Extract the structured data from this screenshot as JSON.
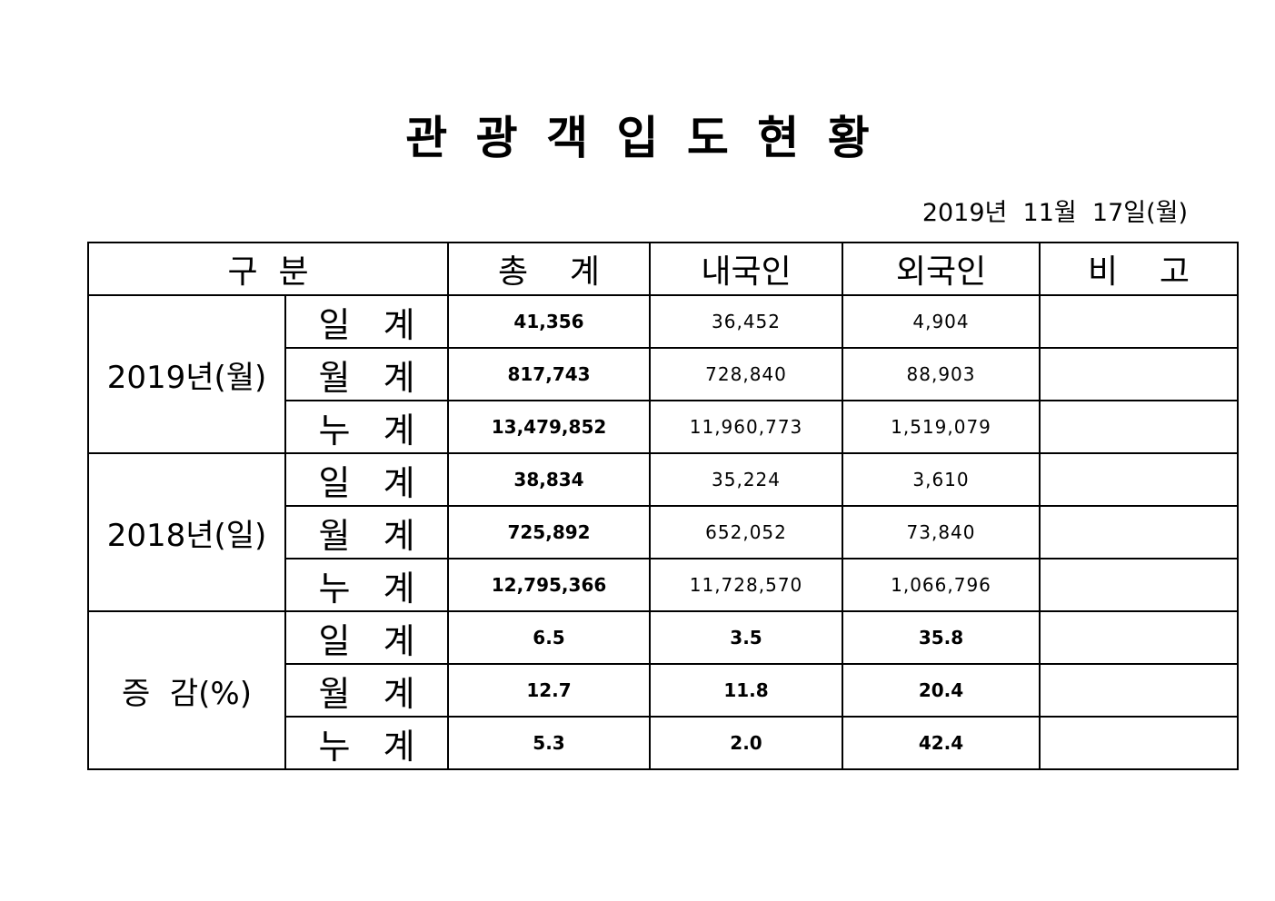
{
  "header": {
    "title": "관 광 객 입 도 현 황",
    "date": "2019년  11월  17일(월)"
  },
  "table": {
    "columns": [
      "구  분",
      "총    계",
      "내국인",
      "외국인",
      "비    고"
    ],
    "groups": [
      {
        "label": "2019년(월)",
        "rows": [
          {
            "label": "일  계",
            "values": [
              "41,356",
              "36,452",
              "4,904"
            ]
          },
          {
            "label": "월  계",
            "values": [
              "817,743",
              "728,840",
              "88,903"
            ]
          },
          {
            "label": "누  계",
            "values": [
              "13,479,852",
              "11,960,773",
              "1,519,079"
            ]
          }
        ]
      },
      {
        "label": "2018년(일)",
        "rows": [
          {
            "label": "일  계",
            "values": [
              "38,834",
              "35,224",
              "3,610"
            ]
          },
          {
            "label": "월  계",
            "values": [
              "725,892",
              "652,052",
              "73,840"
            ]
          },
          {
            "label": "누  계",
            "values": [
              "12,795,366",
              "11,728,570",
              "1,066,796"
            ]
          }
        ]
      },
      {
        "label": "증  감(%)",
        "rows": [
          {
            "label": "일  계",
            "values": [
              "6.5",
              "3.5",
              "35.8"
            ]
          },
          {
            "label": "월  계",
            "values": [
              "12.7",
              "11.8",
              "20.4"
            ]
          },
          {
            "label": "누  계",
            "values": [
              "5.3",
              "2.0",
              "42.4"
            ]
          }
        ]
      }
    ]
  }
}
